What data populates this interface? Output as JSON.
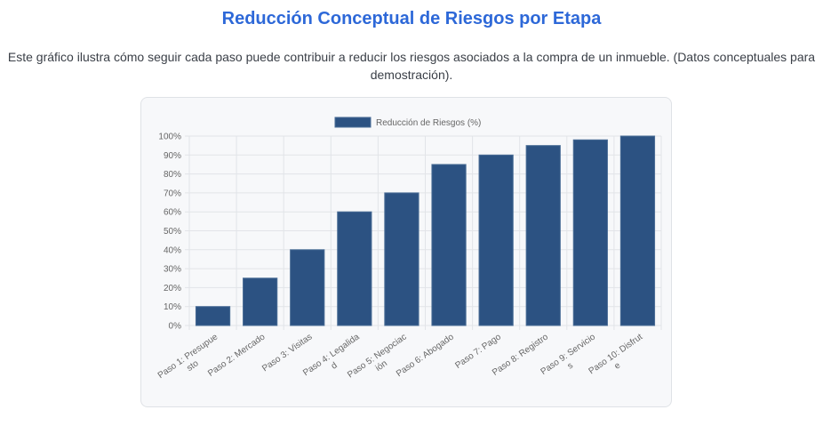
{
  "page": {
    "title": "Reducción Conceptual de Riesgos por Etapa",
    "description": "Este gráfico ilustra cómo seguir cada paso puede contribuir a reducir los riesgos asociados a la compra de un inmueble. (Datos conceptuales para demostración)."
  },
  "colors": {
    "title": "#2d68d8",
    "bar_fill": "#2c5282",
    "bar_border": "#4a6d96",
    "grid": "#e2e4e8",
    "card_background": "#f7f8fa"
  },
  "chart_data": {
    "type": "bar",
    "categories": [
      [
        "Paso 1: Presupue",
        "sto"
      ],
      [
        "Paso 2: Mercado"
      ],
      [
        "Paso 3: Visitas"
      ],
      [
        "Paso 4: Legalida",
        "d"
      ],
      [
        "Paso 5: Negociac",
        "ión"
      ],
      [
        "Paso 6: Abogado"
      ],
      [
        "Paso 7: Pago"
      ],
      [
        "Paso 8: Registro"
      ],
      [
        "Paso 9: Servicio",
        "s"
      ],
      [
        "Paso 10: Disfrut",
        "e"
      ]
    ],
    "series": [
      {
        "name": "Reducción de Riesgos (%)",
        "values": [
          10,
          25,
          40,
          60,
          70,
          85,
          90,
          95,
          98,
          100
        ]
      }
    ],
    "y_ticks": [
      "0%",
      "10%",
      "20%",
      "30%",
      "40%",
      "50%",
      "60%",
      "70%",
      "80%",
      "90%",
      "100%"
    ],
    "ylim": [
      0,
      100
    ],
    "grid": true,
    "legend_position": "top-center"
  }
}
